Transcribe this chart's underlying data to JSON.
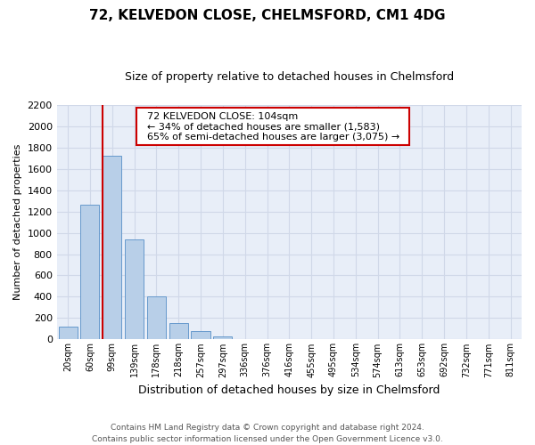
{
  "title": "72, KELVEDON CLOSE, CHELMSFORD, CM1 4DG",
  "subtitle": "Size of property relative to detached houses in Chelmsford",
  "xlabel": "Distribution of detached houses by size in Chelmsford",
  "ylabel": "Number of detached properties",
  "footer_line1": "Contains HM Land Registry data © Crown copyright and database right 2024.",
  "footer_line2": "Contains public sector information licensed under the Open Government Licence v3.0.",
  "bar_labels": [
    "20sqm",
    "60sqm",
    "99sqm",
    "139sqm",
    "178sqm",
    "218sqm",
    "257sqm",
    "297sqm",
    "336sqm",
    "376sqm",
    "416sqm",
    "455sqm",
    "495sqm",
    "534sqm",
    "574sqm",
    "613sqm",
    "653sqm",
    "692sqm",
    "732sqm",
    "771sqm",
    "811sqm"
  ],
  "bar_values": [
    120,
    1260,
    1720,
    940,
    400,
    150,
    75,
    30,
    0,
    0,
    0,
    0,
    0,
    0,
    0,
    0,
    0,
    0,
    0,
    0,
    0
  ],
  "bar_color": "#b8cfe8",
  "bar_edgecolor": "#6699cc",
  "ylim": [
    0,
    2200
  ],
  "yticks": [
    0,
    200,
    400,
    600,
    800,
    1000,
    1200,
    1400,
    1600,
    1800,
    2000,
    2200
  ],
  "property_line_x": 2,
  "property_line_color": "#cc0000",
  "annotation_title": "72 KELVEDON CLOSE: 104sqm",
  "annotation_line1": "← 34% of detached houses are smaller (1,583)",
  "annotation_line2": "65% of semi-detached houses are larger (3,075) →",
  "annotation_box_facecolor": "#ffffff",
  "annotation_box_edgecolor": "#cc0000",
  "grid_color": "#d0d8e8",
  "background_color": "#e8eef8",
  "title_fontsize": 11,
  "subtitle_fontsize": 9,
  "ylabel_fontsize": 8,
  "xlabel_fontsize": 9,
  "footer_fontsize": 6.5,
  "annotation_fontsize": 8
}
